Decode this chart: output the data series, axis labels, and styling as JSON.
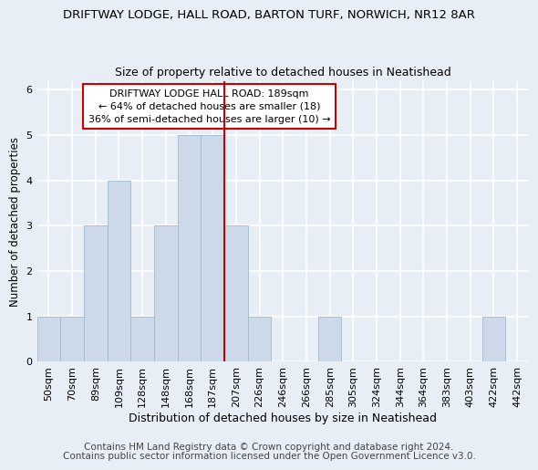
{
  "title": "DRIFTWAY LODGE, HALL ROAD, BARTON TURF, NORWICH, NR12 8AR",
  "subtitle": "Size of property relative to detached houses in Neatishead",
  "xlabel": "Distribution of detached houses by size in Neatishead",
  "ylabel": "Number of detached properties",
  "categories": [
    "50sqm",
    "70sqm",
    "89sqm",
    "109sqm",
    "128sqm",
    "148sqm",
    "168sqm",
    "187sqm",
    "207sqm",
    "226sqm",
    "246sqm",
    "266sqm",
    "285sqm",
    "305sqm",
    "324sqm",
    "344sqm",
    "364sqm",
    "383sqm",
    "403sqm",
    "422sqm",
    "442sqm"
  ],
  "values": [
    1,
    1,
    3,
    4,
    1,
    3,
    5,
    5,
    3,
    1,
    0,
    0,
    1,
    0,
    0,
    0,
    0,
    0,
    0,
    1,
    0
  ],
  "highlight_index": 7,
  "bar_color": "#ccd9e8",
  "bar_edge_color": "#a0b8d0",
  "highlight_line_color": "#cc0000",
  "annotation_line1": "DRIFTWAY LODGE HALL ROAD: 189sqm",
  "annotation_line2": "← 64% of detached houses are smaller (18)",
  "annotation_line3": "36% of semi-detached houses are larger (10) →",
  "annotation_box_color": "#ffffff",
  "annotation_box_edge_color": "#cc0000",
  "ylim": [
    0,
    6.2
  ],
  "yticks": [
    0,
    1,
    2,
    3,
    4,
    5,
    6
  ],
  "footer1": "Contains HM Land Registry data © Crown copyright and database right 2024.",
  "footer2": "Contains public sector information licensed under the Open Government Licence v3.0.",
  "bg_color": "#e8eef5",
  "plot_bg_color": "#e8eef5",
  "grid_color": "#ffffff",
  "title_fontsize": 9.5,
  "subtitle_fontsize": 9,
  "xlabel_fontsize": 9,
  "ylabel_fontsize": 8.5,
  "tick_fontsize": 8,
  "annot_fontsize": 8,
  "footer_fontsize": 7.5
}
